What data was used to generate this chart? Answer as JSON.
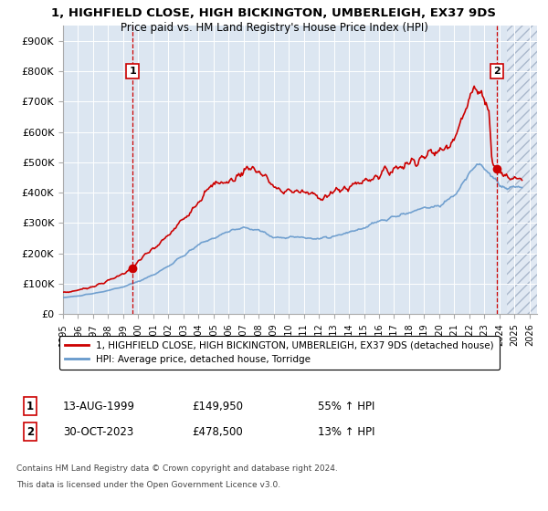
{
  "title_line1": "1, HIGHFIELD CLOSE, HIGH BICKINGTON, UMBERLEIGH, EX37 9DS",
  "title_line2": "Price paid vs. HM Land Registry's House Price Index (HPI)",
  "ylabel_ticks": [
    "£0",
    "£100K",
    "£200K",
    "£300K",
    "£400K",
    "£500K",
    "£600K",
    "£700K",
    "£800K",
    "£900K"
  ],
  "ylim": [
    0,
    950000
  ],
  "xlim_start": 1995.0,
  "xlim_end": 2026.5,
  "xticks": [
    1995,
    1996,
    1997,
    1998,
    1999,
    2000,
    2001,
    2002,
    2003,
    2004,
    2005,
    2006,
    2007,
    2008,
    2009,
    2010,
    2011,
    2012,
    2013,
    2014,
    2015,
    2016,
    2017,
    2018,
    2019,
    2020,
    2021,
    2022,
    2023,
    2024,
    2025,
    2026
  ],
  "hpi_color": "#6699cc",
  "price_color": "#cc0000",
  "marker_color": "#cc0000",
  "vline_color": "#cc0000",
  "background_color": "#dce6f1",
  "legend_label_price": "1, HIGHFIELD CLOSE, HIGH BICKINGTON, UMBERLEIGH, EX37 9DS (detached house)",
  "legend_label_hpi": "HPI: Average price, detached house, Torridge",
  "transaction1_label": "1",
  "transaction1_date": "13-AUG-1999",
  "transaction1_price": "£149,950",
  "transaction1_hpi": "55% ↑ HPI",
  "transaction1_year": 1999.62,
  "transaction1_value": 149950,
  "transaction2_label": "2",
  "transaction2_date": "30-OCT-2023",
  "transaction2_price": "£478,500",
  "transaction2_hpi": "13% ↑ HPI",
  "transaction2_year": 2023.83,
  "transaction2_value": 478500,
  "footnote1": "Contains HM Land Registry data © Crown copyright and database right 2024.",
  "footnote2": "This data is licensed under the Open Government Licence v3.0."
}
